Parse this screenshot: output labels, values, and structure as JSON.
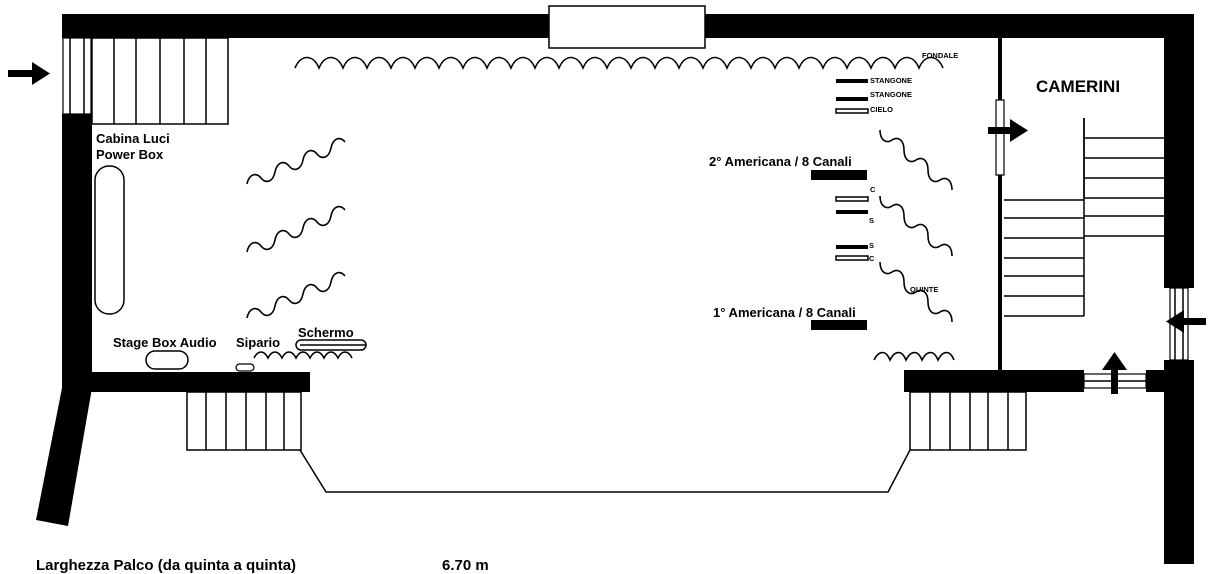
{
  "labels": {
    "fondale": "FONDALE",
    "stangone_1": "STANGONE",
    "stangone_2": "STANGONE",
    "cielo": "CIELO",
    "camerini": "CAMERINI",
    "cabina_luci_line1": "Cabina Luci",
    "cabina_luci_line2": "Power Box",
    "americana_2": "2° Americana / 8 Canali",
    "americana_1": "1° Americana / 8 Canali",
    "quinte": "QUINTE",
    "c_top": "C",
    "s_top": "S",
    "s_bottom": "S",
    "c_bottom": "C",
    "stage_box_audio": "Stage Box Audio",
    "sipario": "Sipario",
    "schermo": "Schermo"
  },
  "footer": {
    "width_label": "Larghezza Palco (da quinta a quinta)",
    "width_value": "6.70 m"
  },
  "colors": {
    "ink": "#000000",
    "paper": "#ffffff"
  },
  "icons": [
    "arrow-right-icon",
    "arrow-left-icon",
    "arrow-up-icon"
  ]
}
